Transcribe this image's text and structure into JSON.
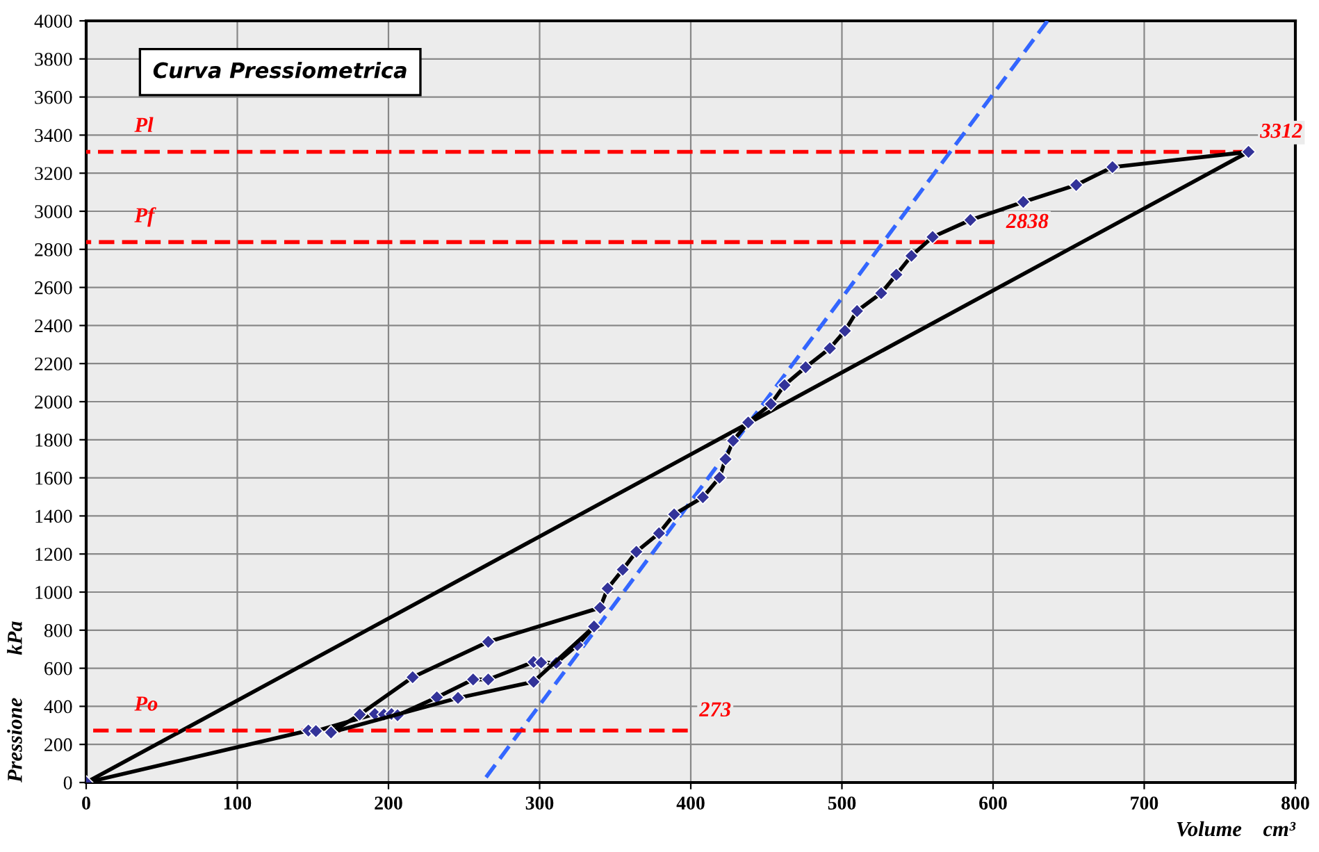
{
  "chart_data": {
    "type": "line",
    "title": "Curva Pressiometrica",
    "xlabel": "Volume    cm³",
    "ylabel": "Pressione        kPa",
    "xlim": [
      0,
      800
    ],
    "xticks": [
      0,
      100,
      200,
      300,
      400,
      500,
      600,
      700,
      800
    ],
    "ylim": [
      0,
      4000
    ],
    "yticks": [
      0,
      200,
      400,
      600,
      800,
      1000,
      1200,
      1400,
      1600,
      1800,
      2000,
      2200,
      2400,
      2600,
      2800,
      3000,
      3200,
      3400,
      3600,
      3800,
      4000
    ],
    "grid": true,
    "series": [
      {
        "color": "#000000",
        "marker": "diamond",
        "line_style": "solid",
        "x": [
          0,
          147,
          152,
          191,
          197,
          202,
          206,
          232,
          256,
          266,
          296,
          301,
          311,
          325,
          336
        ],
        "values": [
          0,
          273,
          270,
          360,
          357,
          360,
          353,
          447,
          541,
          541,
          633,
          630,
          628,
          722,
          819
        ]
      },
      {
        "color": "#000000",
        "marker": "diamond",
        "line_style": "solid",
        "x": [
          162,
          246,
          296,
          336
        ],
        "values": [
          263,
          444,
          529,
          819
        ]
      },
      {
        "color": "#000000",
        "marker": "diamond",
        "line_style": "solid",
        "x": [
          162,
          181,
          216,
          266,
          340,
          345,
          355,
          364,
          379,
          389,
          408,
          419,
          423,
          428,
          438,
          453,
          462,
          476,
          492,
          502,
          510,
          526,
          536,
          546,
          560,
          585,
          620,
          655,
          679,
          769
        ],
        "values": [
          263,
          357,
          553,
          739,
          918,
          1019,
          1118,
          1212,
          1309,
          1408,
          1498,
          1601,
          1698,
          1795,
          1891,
          1988,
          2087,
          2181,
          2280,
          2372,
          2476,
          2570,
          2667,
          2766,
          2865,
          2954,
          3049,
          3138,
          3232,
          3312
        ]
      },
      {
        "color": "#000000",
        "marker": "none",
        "line_style": "solid",
        "x": [
          0,
          769
        ],
        "values": [
          0,
          3312
        ]
      },
      {
        "color": "#3366ff",
        "marker": "none",
        "line_style": "dashed",
        "x": [
          262,
          636
        ],
        "values": [
          0,
          4000
        ]
      },
      {
        "name": "Pl",
        "color": "#ff0000",
        "marker": "none",
        "line_style": "dashed",
        "x": [
          0,
          769
        ],
        "values": [
          3312,
          3312
        ],
        "value_labels": [
          null,
          "3312"
        ]
      },
      {
        "name": "Pf",
        "color": "#ff0000",
        "marker": "none",
        "line_style": "dashed",
        "x": [
          0,
          601
        ],
        "values": [
          2838,
          2838
        ],
        "value_labels": [
          null,
          "2838"
        ]
      },
      {
        "name": "Po",
        "color": "#ff0000",
        "marker": "none",
        "line_style": "dashed",
        "x": [
          0,
          398
        ],
        "values": [
          273,
          273
        ],
        "value_labels": [
          null,
          "273"
        ]
      }
    ]
  }
}
